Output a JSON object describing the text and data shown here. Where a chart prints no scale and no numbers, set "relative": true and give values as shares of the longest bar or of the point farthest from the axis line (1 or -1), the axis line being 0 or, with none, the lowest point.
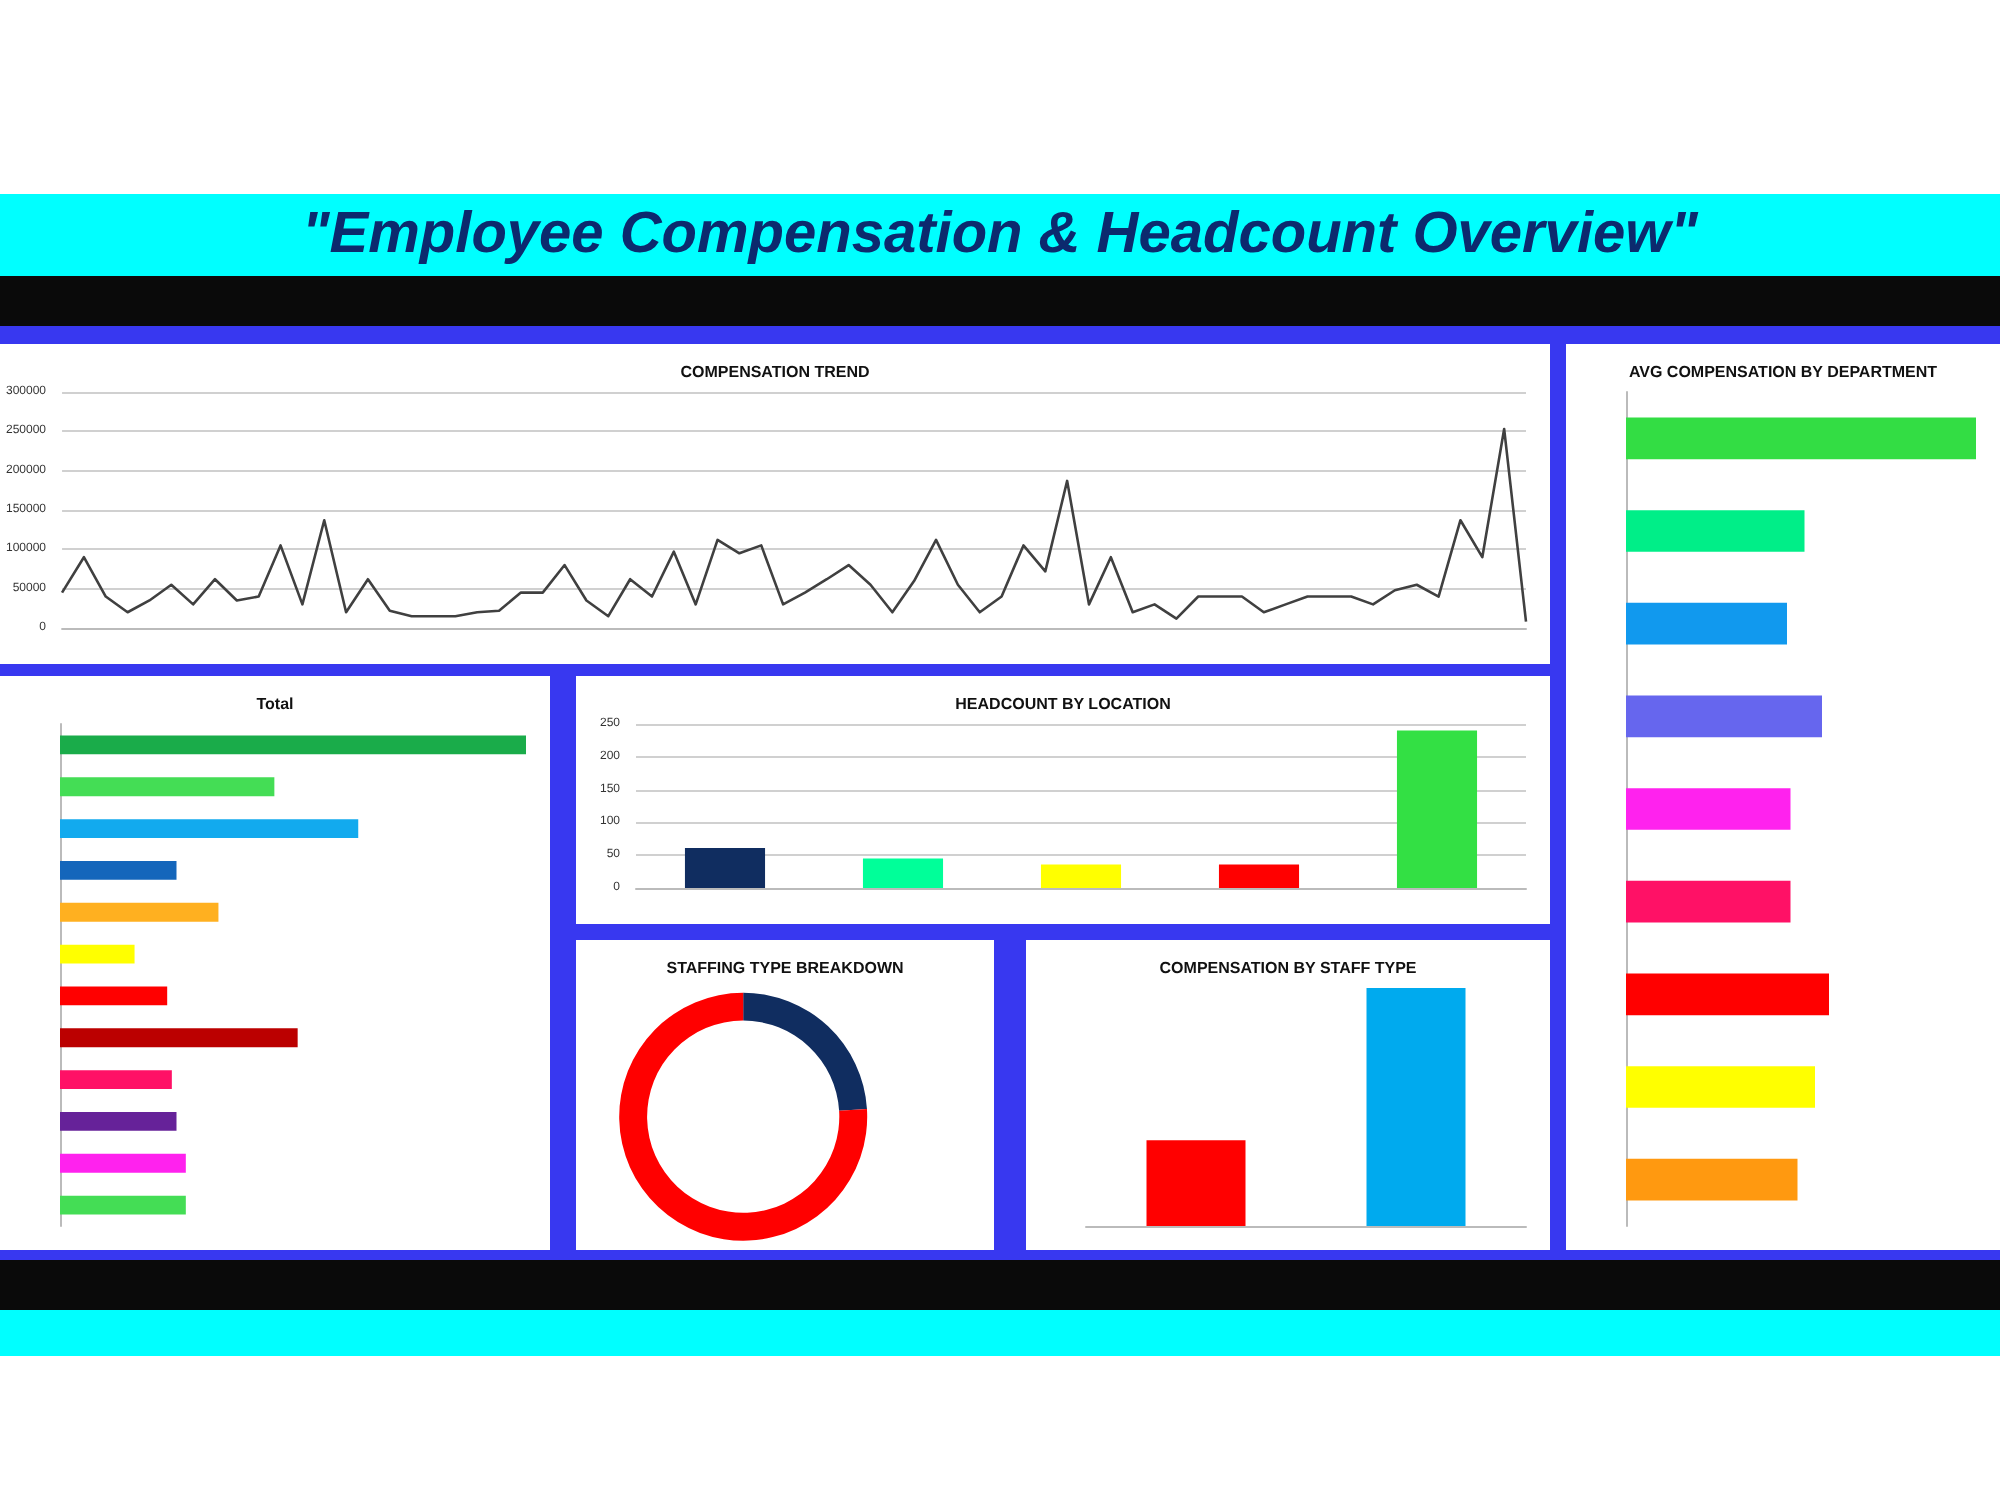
{
  "chart_data": [
    {
      "type": "other",
      "title": "\"Employee Compensation & Headcount Overview\""
    },
    {
      "type": "line",
      "title": "COMPENSATION TREND",
      "color": "#404040",
      "grid": "y",
      "marker": "none",
      "ylim": [
        0,
        300000
      ],
      "yticks": [
        0,
        50000,
        100000,
        150000,
        200000,
        250000,
        300000
      ],
      "categories": [
        null,
        null,
        null,
        null,
        null,
        null,
        null,
        null,
        null,
        null,
        null,
        null,
        null,
        null,
        null,
        null,
        null,
        null,
        null,
        null,
        null,
        null,
        null,
        null,
        null,
        null,
        null,
        null,
        null,
        null,
        null,
        null,
        null,
        null,
        null,
        null,
        null,
        null,
        null,
        null,
        null,
        null,
        null,
        null,
        null,
        null,
        null,
        null,
        null,
        null,
        null,
        null,
        null,
        null,
        null,
        null,
        null,
        null,
        null,
        null,
        null,
        null,
        null,
        null,
        null,
        null,
        null,
        null
      ],
      "values": [
        45000,
        90000,
        40000,
        20000,
        35000,
        55000,
        30000,
        62000,
        35000,
        40000,
        105000,
        30000,
        137000,
        20000,
        62000,
        22000,
        15000,
        15000,
        15000,
        20000,
        22000,
        45000,
        45000,
        80000,
        35000,
        15000,
        62000,
        40000,
        97000,
        30000,
        112000,
        95000,
        105000,
        30000,
        45000,
        62000,
        80000,
        55000,
        20000,
        60000,
        112000,
        55000,
        20000,
        40000,
        105000,
        72000,
        187000,
        30000,
        90000,
        20000,
        30000,
        12000,
        40000,
        40000,
        40000,
        20000,
        30000,
        40000,
        40000,
        40000,
        30000,
        48000,
        55000,
        40000,
        137000,
        90000,
        253000,
        8000
      ]
    },
    {
      "type": "bar",
      "title": "Total",
      "orientation": "horizontal",
      "relative": true,
      "categories": [
        null,
        null,
        null,
        null,
        null,
        null,
        null,
        null,
        null,
        null,
        null,
        null
      ],
      "values": [
        1,
        0.46,
        0.64,
        0.25,
        0.34,
        0.16,
        0.23,
        0.51,
        0.24,
        0.25,
        0.27,
        0.27
      ],
      "colors": [
        "#1aac4a",
        "#44dd55",
        "#12aaee",
        "#1466bb",
        "#ffb020",
        "#ffff00",
        "#ff0000",
        "#bb0000",
        "#ff1166",
        "#662299",
        "#ff22ee",
        "#44dd55"
      ]
    },
    {
      "type": "bar",
      "title": "HEADCOUNT BY LOCATION",
      "grid": "y",
      "ylim": [
        0,
        250
      ],
      "yticks": [
        0,
        50,
        100,
        150,
        200,
        250
      ],
      "categories": [
        null,
        null,
        null,
        null,
        null
      ],
      "values": [
        61,
        45,
        36,
        36,
        240
      ],
      "colors": [
        "#102d60",
        "#00ff99",
        "#ffff00",
        "#ff0000",
        "#33e044"
      ]
    },
    {
      "type": "donut",
      "title": "STAFFING TYPE BREAKDOWN",
      "categories": [
        null,
        null
      ],
      "values": [
        24,
        76
      ],
      "colors": [
        "#102d60",
        "#ff0000"
      ]
    },
    {
      "type": "bar",
      "title": "COMPENSATION BY STAFF TYPE",
      "relative": true,
      "categories": [
        null,
        null
      ],
      "values": [
        0.36,
        1
      ],
      "colors": [
        "#ff0000",
        "#00aaee"
      ]
    },
    {
      "type": "bar",
      "title": "AVG COMPENSATION BY DEPARTMENT",
      "orientation": "horizontal",
      "relative": true,
      "categories": [
        null,
        null,
        null,
        null,
        null,
        null,
        null,
        null,
        null
      ],
      "values": [
        1,
        0.51,
        0.46,
        0.56,
        0.47,
        0.47,
        0.58,
        0.54,
        0.49
      ],
      "colors": [
        "#33dd44",
        "#00ee88",
        "#1199ee",
        "#6666ee",
        "#ff22ee",
        "#ff1166",
        "#ff0000",
        "#ffff00",
        "#ff9910"
      ]
    }
  ]
}
